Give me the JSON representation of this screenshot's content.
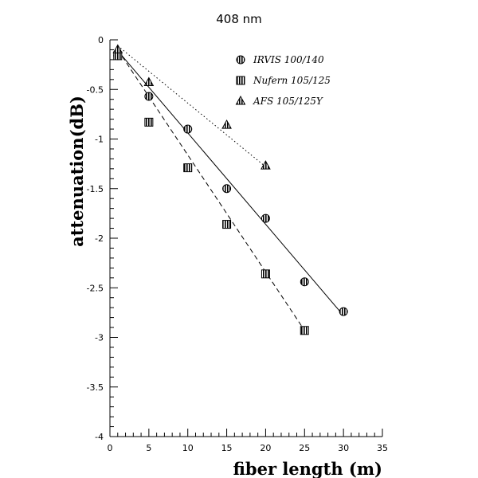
{
  "chart_data": {
    "type": "scatter",
    "title": "408 nm",
    "xlabel": "fiber length (m)",
    "ylabel": "attenuation(dB)",
    "xlim": [
      0,
      35
    ],
    "ylim": [
      -4,
      0
    ],
    "xticks": [
      "0",
      "5",
      "10",
      "15",
      "20",
      "25",
      "30",
      "35"
    ],
    "yticks": [
      "0",
      "-0.5",
      "-1",
      "-1.5",
      "-2",
      "-2.5",
      "-3",
      "-3.5",
      "-4"
    ],
    "grid": false,
    "legend_position": "top-right",
    "series": [
      {
        "name": "IRVIS 100/140",
        "marker": "circle",
        "line_style": "solid",
        "x": [
          1,
          5,
          10,
          15,
          20,
          25,
          30
        ],
        "y": [
          -0.16,
          -0.57,
          -0.9,
          -1.5,
          -1.8,
          -2.44,
          -2.74
        ],
        "fit_line": {
          "x": [
            1,
            30
          ],
          "y": [
            -0.11,
            -2.78
          ]
        }
      },
      {
        "name": "Nufern 105/125",
        "marker": "square",
        "line_style": "dashed",
        "x": [
          1,
          5,
          10,
          15,
          20,
          25
        ],
        "y": [
          -0.16,
          -0.83,
          -1.29,
          -1.86,
          -2.36,
          -2.93
        ],
        "fit_line": {
          "x": [
            1,
            25
          ],
          "y": [
            -0.1,
            -2.93
          ]
        }
      },
      {
        "name": "AFS 105/125Y",
        "marker": "triangle",
        "line_style": "dotted",
        "x": [
          1,
          5,
          15,
          20
        ],
        "y": [
          -0.1,
          -0.43,
          -0.86,
          -1.27
        ],
        "fit_line": {
          "x": [
            1,
            20
          ],
          "y": [
            -0.06,
            -1.28
          ]
        }
      }
    ]
  }
}
